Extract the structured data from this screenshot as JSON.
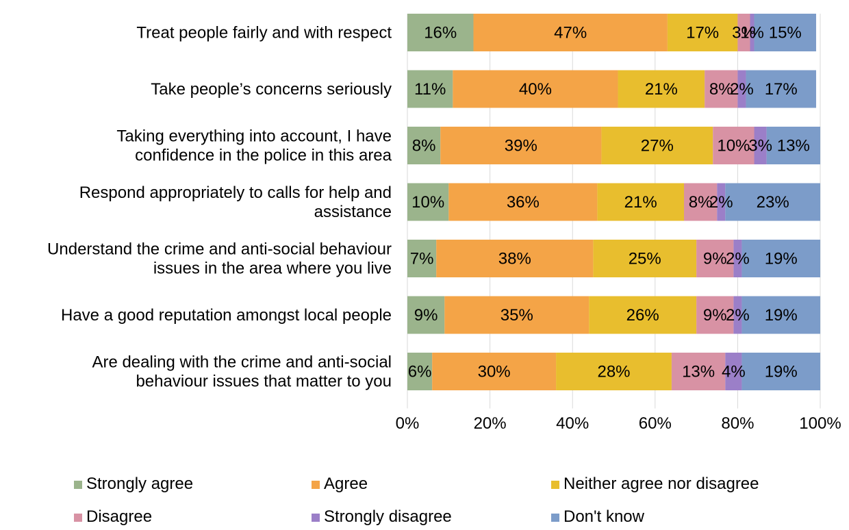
{
  "chart_data": {
    "type": "bar",
    "orientation": "horizontal",
    "stacked": "percent",
    "categories": [
      [
        "Treat people fairly and with respect"
      ],
      [
        "Take people’s concerns seriously"
      ],
      [
        "Taking everything into account, I have",
        "confidence in the police in this area"
      ],
      [
        "Respond appropriately to calls for help and",
        "assistance"
      ],
      [
        "Understand the crime and anti-social behaviour",
        "issues in the area where you live"
      ],
      [
        "Have a good reputation amongst local people"
      ],
      [
        "Are dealing with the crime and anti-social",
        "behaviour issues that matter to you"
      ]
    ],
    "series": [
      {
        "name": "Strongly agree",
        "color": "#9BB48C",
        "values": [
          16,
          11,
          8,
          10,
          7,
          9,
          6
        ]
      },
      {
        "name": "Agree",
        "color": "#F4A447",
        "values": [
          47,
          40,
          39,
          36,
          38,
          35,
          30
        ]
      },
      {
        "name": "Neither agree nor disagree",
        "color": "#E8BE2E",
        "values": [
          17,
          21,
          27,
          21,
          25,
          26,
          28
        ]
      },
      {
        "name": "Disagree",
        "color": "#D892A4",
        "values": [
          3,
          8,
          10,
          8,
          9,
          9,
          13
        ]
      },
      {
        "name": "Strongly disagree",
        "color": "#9B7FC8",
        "values": [
          1,
          2,
          3,
          2,
          2,
          2,
          4
        ]
      },
      {
        "name": "Don't know",
        "color": "#7C9CC9",
        "values": [
          15,
          17,
          13,
          23,
          19,
          19,
          19
        ]
      }
    ],
    "xticks": [
      "0%",
      "20%",
      "40%",
      "60%",
      "80%",
      "100%"
    ],
    "xlim": [
      0,
      100
    ],
    "legend_position": "bottom",
    "grid": true
  }
}
